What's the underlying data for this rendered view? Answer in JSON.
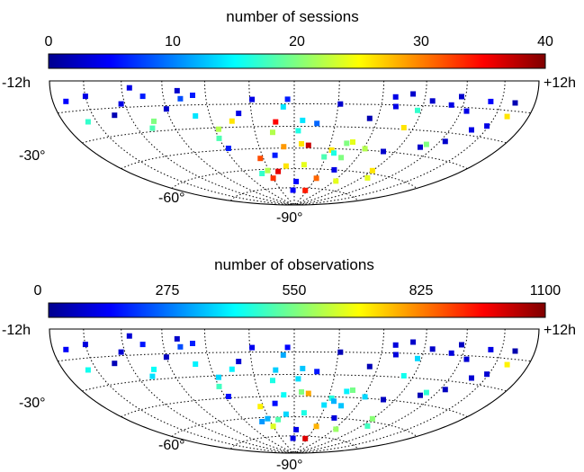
{
  "chart_data": [
    {
      "type": "scatter",
      "projection": "Hammer-Aitoff, southern hemisphere",
      "colorbar": {
        "title": "number of sessions",
        "min": 0,
        "max": 40,
        "ticks": [
          "0",
          "10",
          "20",
          "30",
          "40"
        ],
        "colormap": "jet"
      },
      "labels": {
        "ra_left": "-12h",
        "ra_right": "+12h",
        "dec_30": "-30°",
        "dec_60": "-60°",
        "dec_90": "-90°"
      },
      "grid": true,
      "points": [
        {
          "ra_h": -11.2,
          "dec": -10,
          "value": 5
        },
        {
          "ra_h": -10.0,
          "dec": -8,
          "value": 4
        },
        {
          "ra_h": -10.5,
          "dec": -21,
          "value": 17
        },
        {
          "ra_h": -8.8,
          "dec": -19,
          "value": 2
        },
        {
          "ra_h": -8.2,
          "dec": -13,
          "value": 4
        },
        {
          "ra_h": -7.6,
          "dec": -4,
          "value": 4
        },
        {
          "ra_h": -7.0,
          "dec": -9,
          "value": 6
        },
        {
          "ra_h": -6.9,
          "dec": -24,
          "value": 20
        },
        {
          "ra_h": -7.2,
          "dec": -28,
          "value": 18
        },
        {
          "ra_h": -6.0,
          "dec": -17,
          "value": 3
        },
        {
          "ra_h": -5.3,
          "dec": -6,
          "value": 3
        },
        {
          "ra_h": -5.2,
          "dec": -11,
          "value": 8
        },
        {
          "ra_h": -4.7,
          "dec": -22,
          "value": 14
        },
        {
          "ra_h": -4.6,
          "dec": -9,
          "value": 6
        },
        {
          "ra_h": -4.0,
          "dec": -37,
          "value": 18
        },
        {
          "ra_h": -3.8,
          "dec": -44,
          "value": 6
        },
        {
          "ra_h": -3.8,
          "dec": -31,
          "value": 22
        },
        {
          "ra_h": -3.0,
          "dec": -26,
          "value": 26
        },
        {
          "ra_h": -2.6,
          "dec": -21,
          "value": 4
        },
        {
          "ra_h": -2.2,
          "dec": -52,
          "value": 32
        },
        {
          "ra_h": -1.9,
          "dec": -12,
          "value": 4
        },
        {
          "ra_h": -2.1,
          "dec": -61,
          "value": 22
        },
        {
          "ra_h": -2.0,
          "dec": -67,
          "value": 33
        },
        {
          "ra_h": -2.7,
          "dec": -63,
          "value": 17
        },
        {
          "ra_h": -1.3,
          "dec": -62,
          "value": 36
        },
        {
          "ra_h": -1.2,
          "dec": -50,
          "value": 6
        },
        {
          "ra_h": -1.1,
          "dec": -34,
          "value": 22
        },
        {
          "ra_h": -0.9,
          "dec": -27,
          "value": 35
        },
        {
          "ra_h": -0.6,
          "dec": -58,
          "value": 26
        },
        {
          "ra_h": -0.6,
          "dec": -44,
          "value": 29
        },
        {
          "ra_h": -0.5,
          "dec": -17,
          "value": 14
        },
        {
          "ra_h": -0.3,
          "dec": -12,
          "value": 6
        },
        {
          "ra_h": -0.2,
          "dec": -77,
          "value": 5
        },
        {
          "ra_h": 0.2,
          "dec": -70,
          "value": 5
        },
        {
          "ra_h": 0.2,
          "dec": -33,
          "value": 16
        },
        {
          "ra_h": 0.4,
          "dec": -26,
          "value": 14
        },
        {
          "ra_h": 0.4,
          "dec": -42,
          "value": 26
        },
        {
          "ra_h": 0.7,
          "dec": -57,
          "value": 24
        },
        {
          "ra_h": 0.8,
          "dec": -43,
          "value": 37
        },
        {
          "ra_h": 1.1,
          "dec": -28,
          "value": 9
        },
        {
          "ra_h": 1.7,
          "dec": -77,
          "value": 34
        },
        {
          "ra_h": 2.1,
          "dec": -67,
          "value": 31
        },
        {
          "ra_h": 1.9,
          "dec": -51,
          "value": 18
        },
        {
          "ra_h": 2.2,
          "dec": -46,
          "value": 26
        },
        {
          "ra_h": 2.1,
          "dec": -15,
          "value": 3
        },
        {
          "ra_h": 2.4,
          "dec": -48,
          "value": 16
        },
        {
          "ra_h": 2.9,
          "dec": -41,
          "value": 20
        },
        {
          "ra_h": 3.0,
          "dec": -51,
          "value": 20
        },
        {
          "ra_h": 3.2,
          "dec": -40,
          "value": 24
        },
        {
          "ra_h": 3.1,
          "dec": -60,
          "value": 4
        },
        {
          "ra_h": 3.6,
          "dec": -24,
          "value": 2
        },
        {
          "ra_h": 4.2,
          "dec": -68,
          "value": 24
        },
        {
          "ra_h": 4.1,
          "dec": -44,
          "value": 22
        },
        {
          "ra_h": 4.6,
          "dec": -10,
          "value": 4
        },
        {
          "ra_h": 4.7,
          "dec": -16,
          "value": 4
        },
        {
          "ra_h": 5.4,
          "dec": -8,
          "value": 3
        },
        {
          "ra_h": 5.3,
          "dec": -45,
          "value": 3
        },
        {
          "ra_h": 5.5,
          "dec": -29,
          "value": 26
        },
        {
          "ra_h": 5.8,
          "dec": -18,
          "value": 17
        },
        {
          "ra_h": 6.0,
          "dec": -58,
          "value": 26
        },
        {
          "ra_h": 6.4,
          "dec": -12,
          "value": 3
        },
        {
          "ra_h": 6.5,
          "dec": -63,
          "value": 24
        },
        {
          "ra_h": 7.2,
          "dec": -40,
          "value": 3
        },
        {
          "ra_h": 7.4,
          "dec": -38,
          "value": 20
        },
        {
          "ra_h": 7.4,
          "dec": -14,
          "value": 4
        },
        {
          "ra_h": 7.8,
          "dec": -9,
          "value": 3
        },
        {
          "ra_h": 8.3,
          "dec": -17,
          "value": 4
        },
        {
          "ra_h": 8.3,
          "dec": -35,
          "value": 3
        },
        {
          "ra_h": 9.4,
          "dec": -11,
          "value": 5
        },
        {
          "ra_h": 9.2,
          "dec": -27,
          "value": 4
        },
        {
          "ra_h": 9.9,
          "dec": -24,
          "value": 4
        },
        {
          "ra_h": 10.7,
          "dec": -18,
          "value": 26
        },
        {
          "ra_h": 10.8,
          "dec": -11,
          "value": 2
        }
      ]
    },
    {
      "type": "scatter",
      "projection": "Hammer-Aitoff, southern hemisphere",
      "colorbar": {
        "title": "number of observations",
        "min": 0,
        "max": 1100,
        "ticks": [
          "0",
          "275",
          "550",
          "825",
          "1100"
        ],
        "colormap": "jet"
      },
      "labels": {
        "ra_left": "-12h",
        "ra_right": "+12h",
        "dec_30": "-30°",
        "dec_60": "-60°",
        "dec_90": "-90°"
      },
      "grid": true,
      "points": [
        {
          "ra_h": -11.2,
          "dec": -10,
          "value": 130
        },
        {
          "ra_h": -10.0,
          "dec": -8,
          "value": 100
        },
        {
          "ra_h": -10.5,
          "dec": -21,
          "value": 430
        },
        {
          "ra_h": -8.8,
          "dec": -19,
          "value": 60
        },
        {
          "ra_h": -8.2,
          "dec": -13,
          "value": 90
        },
        {
          "ra_h": -7.6,
          "dec": -4,
          "value": 90
        },
        {
          "ra_h": -7.0,
          "dec": -9,
          "value": 160
        },
        {
          "ra_h": -6.9,
          "dec": -24,
          "value": 420
        },
        {
          "ra_h": -7.2,
          "dec": -28,
          "value": 380
        },
        {
          "ra_h": -6.0,
          "dec": -17,
          "value": 70
        },
        {
          "ra_h": -5.3,
          "dec": -6,
          "value": 80
        },
        {
          "ra_h": -5.2,
          "dec": -11,
          "value": 220
        },
        {
          "ra_h": -4.7,
          "dec": -22,
          "value": 400
        },
        {
          "ra_h": -4.6,
          "dec": -9,
          "value": 170
        },
        {
          "ra_h": -4.0,
          "dec": -37,
          "value": 480
        },
        {
          "ra_h": -3.8,
          "dec": -44,
          "value": 150
        },
        {
          "ra_h": -3.8,
          "dec": -31,
          "value": 370
        },
        {
          "ra_h": -3.0,
          "dec": -26,
          "value": 400
        },
        {
          "ra_h": -2.6,
          "dec": -21,
          "value": 90
        },
        {
          "ra_h": -2.2,
          "dec": -52,
          "value": 700
        },
        {
          "ra_h": -1.9,
          "dec": -12,
          "value": 120
        },
        {
          "ra_h": -2.1,
          "dec": -61,
          "value": 330
        },
        {
          "ra_h": -2.0,
          "dec": -67,
          "value": 650
        },
        {
          "ra_h": -2.7,
          "dec": -63,
          "value": 300
        },
        {
          "ra_h": -1.3,
          "dec": -62,
          "value": 500
        },
        {
          "ra_h": -1.2,
          "dec": -50,
          "value": 150
        },
        {
          "ra_h": -1.1,
          "dec": -34,
          "value": 440
        },
        {
          "ra_h": -0.9,
          "dec": -27,
          "value": 360
        },
        {
          "ra_h": -0.6,
          "dec": -58,
          "value": 370
        },
        {
          "ra_h": -0.6,
          "dec": -44,
          "value": 420
        },
        {
          "ra_h": -0.5,
          "dec": -17,
          "value": 320
        },
        {
          "ra_h": -0.3,
          "dec": -12,
          "value": 140
        },
        {
          "ra_h": -0.2,
          "dec": -77,
          "value": 110
        },
        {
          "ra_h": 0.2,
          "dec": -70,
          "value": 110
        },
        {
          "ra_h": 0.2,
          "dec": -33,
          "value": 380
        },
        {
          "ra_h": 0.4,
          "dec": -26,
          "value": 350
        },
        {
          "ra_h": 0.4,
          "dec": -42,
          "value": 550
        },
        {
          "ra_h": 0.7,
          "dec": -57,
          "value": 440
        },
        {
          "ra_h": 0.8,
          "dec": -43,
          "value": 780
        },
        {
          "ra_h": 1.1,
          "dec": -28,
          "value": 160
        },
        {
          "ra_h": 1.7,
          "dec": -77,
          "value": 1000
        },
        {
          "ra_h": 2.1,
          "dec": -67,
          "value": 770
        },
        {
          "ra_h": 1.9,
          "dec": -51,
          "value": 380
        },
        {
          "ra_h": 2.2,
          "dec": -46,
          "value": 450
        },
        {
          "ra_h": 2.1,
          "dec": -15,
          "value": 60
        },
        {
          "ra_h": 2.4,
          "dec": -48,
          "value": 330
        },
        {
          "ra_h": 2.9,
          "dec": -41,
          "value": 400
        },
        {
          "ra_h": 3.0,
          "dec": -51,
          "value": 350
        },
        {
          "ra_h": 3.2,
          "dec": -40,
          "value": 540
        },
        {
          "ra_h": 3.1,
          "dec": -60,
          "value": 100
        },
        {
          "ra_h": 3.6,
          "dec": -24,
          "value": 60
        },
        {
          "ra_h": 4.2,
          "dec": -68,
          "value": 580
        },
        {
          "ra_h": 4.1,
          "dec": -44,
          "value": 370
        },
        {
          "ra_h": 4.6,
          "dec": -10,
          "value": 100
        },
        {
          "ra_h": 4.7,
          "dec": -16,
          "value": 100
        },
        {
          "ra_h": 5.4,
          "dec": -8,
          "value": 80
        },
        {
          "ra_h": 5.3,
          "dec": -45,
          "value": 70
        },
        {
          "ra_h": 5.5,
          "dec": -29,
          "value": 430
        },
        {
          "ra_h": 5.8,
          "dec": -18,
          "value": 370
        },
        {
          "ra_h": 6.0,
          "dec": -58,
          "value": 560
        },
        {
          "ra_h": 6.4,
          "dec": -12,
          "value": 80
        },
        {
          "ra_h": 6.5,
          "dec": -63,
          "value": 480
        },
        {
          "ra_h": 7.2,
          "dec": -40,
          "value": 60
        },
        {
          "ra_h": 7.4,
          "dec": -38,
          "value": 460
        },
        {
          "ra_h": 7.4,
          "dec": -14,
          "value": 100
        },
        {
          "ra_h": 7.8,
          "dec": -9,
          "value": 70
        },
        {
          "ra_h": 8.3,
          "dec": -17,
          "value": 90
        },
        {
          "ra_h": 8.3,
          "dec": -35,
          "value": 70
        },
        {
          "ra_h": 9.4,
          "dec": -11,
          "value": 110
        },
        {
          "ra_h": 9.2,
          "dec": -27,
          "value": 90
        },
        {
          "ra_h": 9.9,
          "dec": -24,
          "value": 90
        },
        {
          "ra_h": 10.7,
          "dec": -18,
          "value": 700
        },
        {
          "ra_h": 10.8,
          "dec": -11,
          "value": 50
        }
      ]
    }
  ]
}
